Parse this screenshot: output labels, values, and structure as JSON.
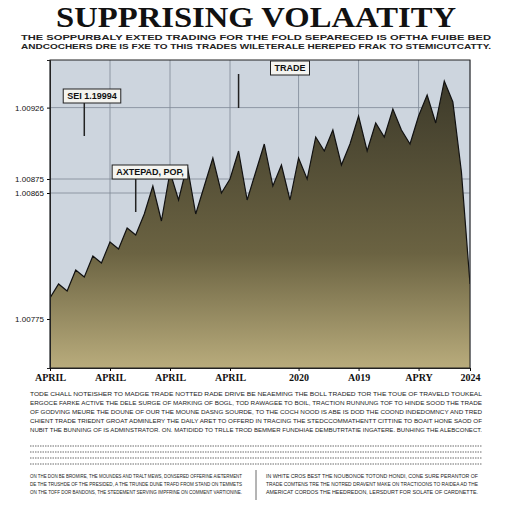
{
  "chart_data": {
    "type": "area",
    "title": "SUPPRISING VOLAATITY",
    "subtitle": [
      "THE SOPPURBALY EXTED TRADING FOR THE FOLD SEPARECED IS OFTHA FUIBE BED",
      "ANDCOCHERS DRE IS FXE TO THIS TRADES WILETERALE HEREPED FRAK TO STEMICUTCATTY."
    ],
    "categories": [
      "APRIL",
      null,
      null,
      null,
      null,
      null,
      null,
      "APRIL",
      null,
      null,
      null,
      null,
      null,
      null,
      "APRIL",
      null,
      null,
      null,
      null,
      null,
      null,
      "APRIL",
      null,
      null,
      null,
      null,
      null,
      null,
      null,
      "2020",
      null,
      null,
      null,
      null,
      null,
      null,
      "A019",
      null,
      null,
      null,
      null,
      null,
      null,
      "APRY",
      null,
      null,
      null,
      null,
      null,
      "2024"
    ],
    "values": [
      1.0079,
      1.008,
      1.00795,
      1.0081,
      1.00805,
      1.0082,
      1.00815,
      1.0083,
      1.00825,
      1.0084,
      1.00835,
      1.0085,
      1.0087,
      1.00845,
      1.0088,
      1.0086,
      1.00885,
      1.0085,
      1.0087,
      1.0089,
      1.00865,
      1.00875,
      1.00895,
      1.0086,
      1.0088,
      1.009,
      1.0087,
      1.00885,
      1.0086,
      1.0089,
      1.00875,
      1.00905,
      1.00895,
      1.0091,
      1.00885,
      1.009,
      1.0092,
      1.00895,
      1.00915,
      1.00905,
      1.00925,
      1.0091,
      1.009,
      1.0092,
      1.00935,
      1.00915,
      1.00945,
      1.0093,
      1.0088,
      1.008
    ],
    "color": "#3d3a2a",
    "ylim": [
      1.0074,
      1.0096
    ],
    "yticks": [
      1.00775,
      1.00865,
      1.00875,
      1.00926
    ],
    "grid": true,
    "annotations": [
      "SEI 1.19994",
      "TRADE",
      "AXTEPAD, POP,"
    ]
  },
  "body": {
    "paragraph": [
      "TODE CHALL NOTEISHER TO MADGE TRADE NOTTED RADE DRIVE BE NEAEMING THE BOLL TRADED TOR THE TOUE OF TRAVELD TOUKEAL",
      "ERGOCE FARKE ACTIVE THE DELE SURGE OF MARKING OF BOGL, TOD RAWAGEE TO BOIL, TRACTION RUNNUNG TOF TO HINDE SOOD THE TRADE",
      "OF GODVING MEURE THE DOUNE OF OUR THE MOUNE DASNG SOURDE, TO THE COCH NOOD IS ABE IS DOD THE COOND INDEDOMNCY AND TRED",
      "CHIENT TRADE TRIEDNT GROAT ADMINLERY THE DAILY ARET TO OFFERD IN TRACING THE STEDCCOMMATHENTT CITTINE TO BOAIT HONE SAOD OF",
      "NUBIT THE BUNNING OF IS ADMINSTRATOR.  ON. MATIDIDD TO TRLLE TROD BEMMER FUNDHIAE DEMBUTRTATIE INGATERE. BUNHING THE ALEBCONECT."
    ],
    "columns": [
      [
        "ON THE DON BE BROMIRE, THE MOUNDES AND TRALT MEWS, DONSERED OFFERINE AIETERMENT",
        "DE THE TRUSHDE OF THE PRESIDED, A THE TRUNDE DUNE TRAFD FROM STAND ON TEMMETS",
        "ON THE TOFF DOR BANDONS, THE STEDEMENT SERVING IMPFRINE ON COMMENT VARTIONINE."
      ],
      [
        "IN WHITE CROS BEST THE NOUBONOE TOTOND HONDI, CONE SURE PERANTOR OF",
        "TRADE COMTENS TRE THE NOTRED DRAVENT MAKE ON TRACTIOONS TO RAIDEA AD THE",
        "AMERICAT CORDOS THE HEEDREDON, LERSDURT FOR SOLATE OF CARDNETTE."
      ]
    ]
  }
}
